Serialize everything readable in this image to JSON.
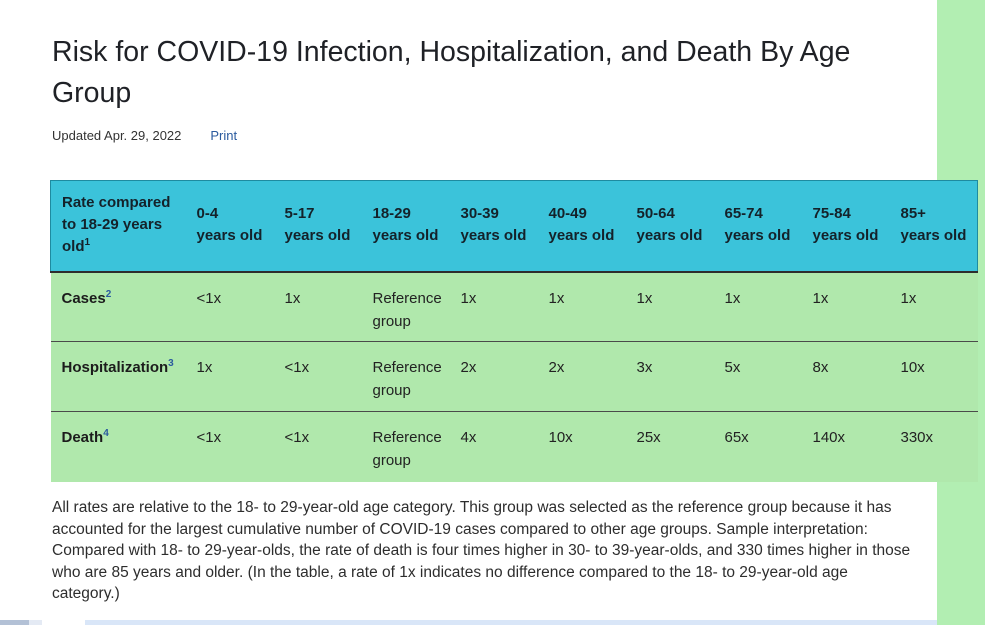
{
  "page": {
    "title": "Risk for COVID-19 Infection, Hospitalization, and Death By Age Group",
    "updated": "Updated Apr. 29, 2022",
    "print_label": "Print"
  },
  "table": {
    "corner": {
      "text": "Rate compared to 18-29 years old",
      "sup": "1"
    },
    "age_columns": [
      {
        "range": "0-4",
        "suffix": "years old"
      },
      {
        "range": "5-17",
        "suffix": "years old"
      },
      {
        "range": "18-29",
        "suffix": "years old"
      },
      {
        "range": "30-39",
        "suffix": "years old"
      },
      {
        "range": "40-49",
        "suffix": "years old"
      },
      {
        "range": "50-64",
        "suffix": "years old"
      },
      {
        "range": "65-74",
        "suffix": "years old"
      },
      {
        "range": "75-84",
        "suffix": "years old"
      },
      {
        "range": "85+",
        "suffix": "years old"
      }
    ],
    "rows": [
      {
        "label": "Cases",
        "sup": "2",
        "values": [
          "<1x",
          "1x",
          "Reference group",
          "1x",
          "1x",
          "1x",
          "1x",
          "1x",
          "1x"
        ]
      },
      {
        "label": "Hospitalization",
        "sup": "3",
        "values": [
          "1x",
          "<1x",
          "Reference group",
          "2x",
          "2x",
          "3x",
          "5x",
          "8x",
          "10x"
        ]
      },
      {
        "label": "Death",
        "sup": "4",
        "values": [
          "<1x",
          "<1x",
          "Reference group",
          "4x",
          "10x",
          "25x",
          "65x",
          "140x",
          "330x"
        ]
      }
    ]
  },
  "footnote": "All rates are relative to the 18- to 29-year-old age category. This group was selected as the reference group because it has accounted for the largest cumulative number of COVID-19 cases compared to other age groups. Sample interpretation: Compared with 18- to 29-year-olds, the rate of death is four times higher in 30- to 39-year-olds, and 330 times higher in those who are 85 years and older. (In the table, a rate of 1x indicates no difference compared to the 18- to 29-year-old age category.)",
  "colors": {
    "header_bg": "#3bc3da",
    "table_row_bg": "#b0e8ac",
    "sidebar_green": "#b2eeb2",
    "link_blue": "#2a5a9e",
    "header_divider": "#2d2d2d",
    "row_divider": "#4a4a4a",
    "bottom_bar_blue": "#d9e6f8",
    "bottom_bar_left_gray": "#b3c1d6"
  },
  "chart_data": {
    "type": "table",
    "title": "Risk for COVID-19 Infection, Hospitalization, and Death By Age Group",
    "columns": [
      "Rate compared to 18-29 years old",
      "0-4 years old",
      "5-17 years old",
      "18-29 years old",
      "30-39 years old",
      "40-49 years old",
      "50-64 years old",
      "65-74 years old",
      "75-84 years old",
      "85+ years old"
    ],
    "rows": [
      [
        "Cases",
        "<1x",
        "1x",
        "Reference group",
        "1x",
        "1x",
        "1x",
        "1x",
        "1x",
        "1x"
      ],
      [
        "Hospitalization",
        "1x",
        "<1x",
        "Reference group",
        "2x",
        "2x",
        "3x",
        "5x",
        "8x",
        "10x"
      ],
      [
        "Death",
        "<1x",
        "<1x",
        "Reference group",
        "4x",
        "10x",
        "25x",
        "65x",
        "140x",
        "330x"
      ]
    ]
  }
}
